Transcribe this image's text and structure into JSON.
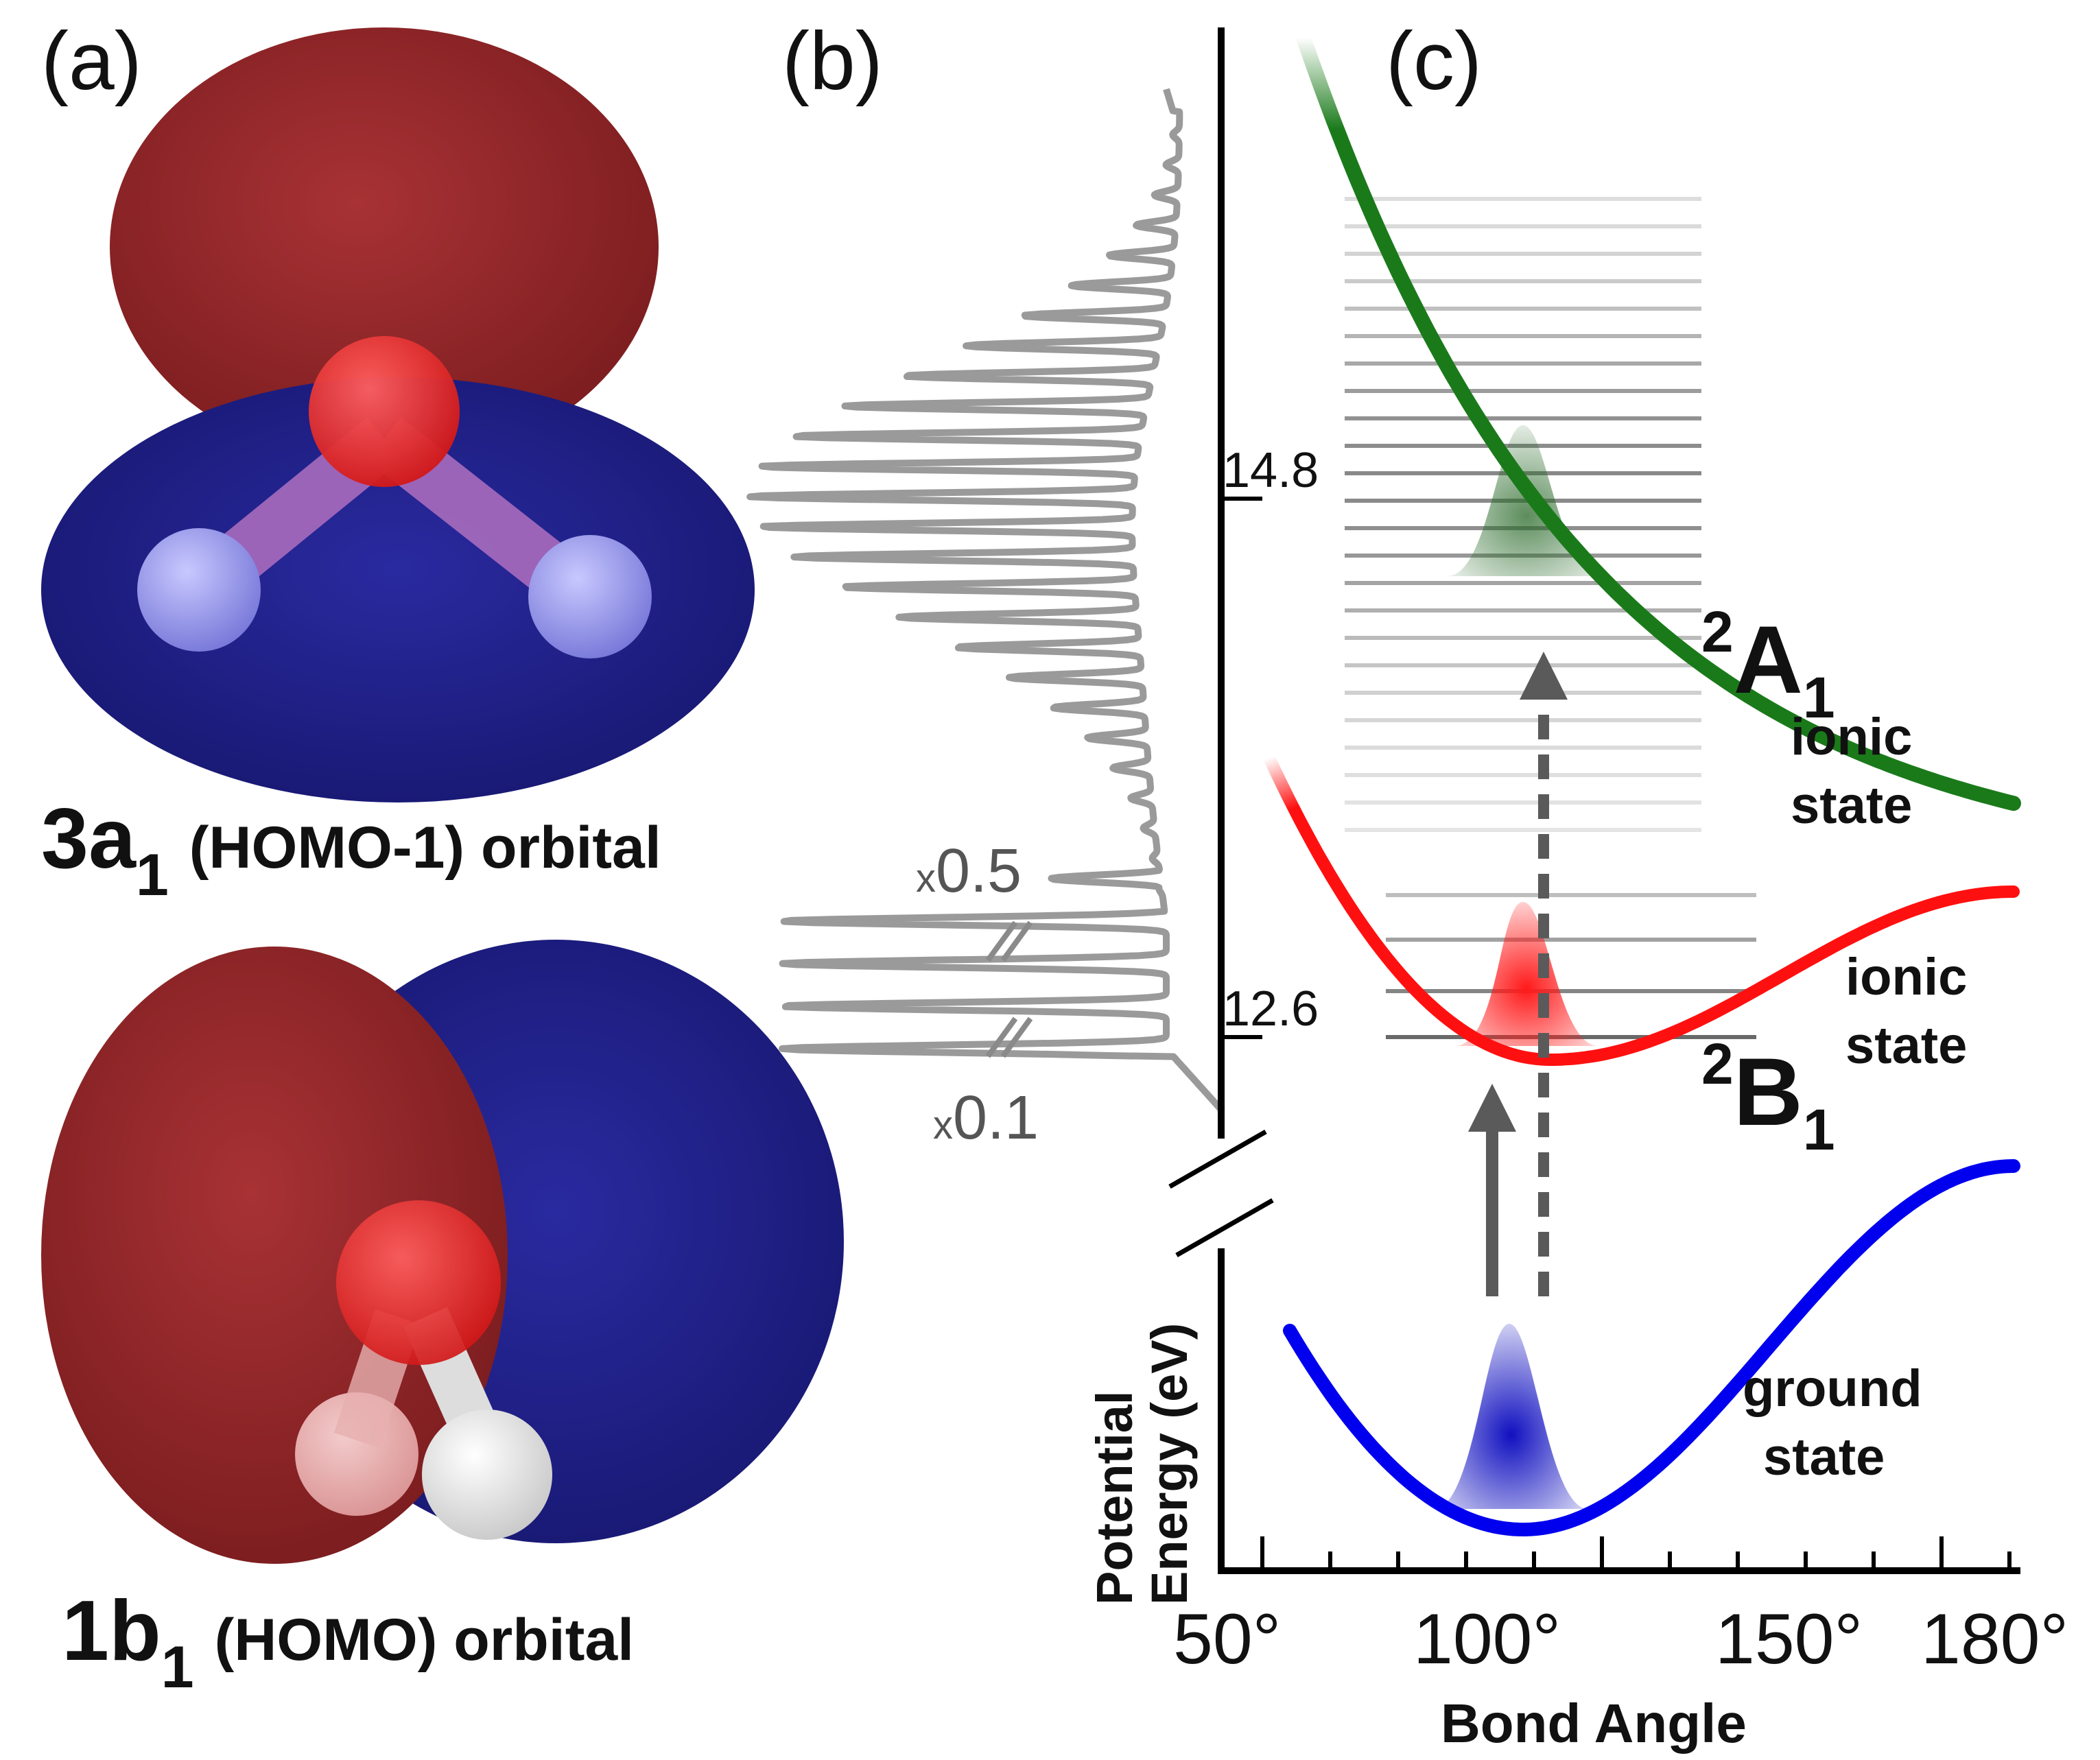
{
  "panels": {
    "a": {
      "label": "(a)",
      "orbital_top": {
        "name": "3a",
        "subscript": "1",
        "rest": "(HOMO-1) orbital"
      },
      "orbital_bottom": {
        "name": "1b",
        "subscript": "1",
        "rest": "(HOMO) orbital"
      }
    },
    "b": {
      "label": "(b)",
      "scale_upper": {
        "prefix": "x",
        "value": "0.5"
      },
      "scale_lower": {
        "prefix": "x",
        "value": "0.1"
      }
    },
    "c": {
      "label": "(c)",
      "energy_labels": [
        "14.8",
        "12.6"
      ],
      "x_ticks": [
        "50°",
        "100°",
        "150°",
        "180°"
      ],
      "x_title": "Bond Angle",
      "y_title_line1": "Potential",
      "y_title_line2": "Energy (eV)",
      "states": {
        "a1": {
          "sup": "2",
          "main": "A",
          "sub": "1",
          "line1": "ionic",
          "line2": "state"
        },
        "b1": {
          "sup": "2",
          "main": "B",
          "sub": "1",
          "line1": "ionic",
          "line2": "state"
        },
        "ground": {
          "line1": "ground",
          "line2": "state"
        }
      }
    }
  },
  "colors": {
    "a1_curve": "#1a7a1a",
    "b1_curve": "#ff1010",
    "ground_curve": "#0000ee",
    "spectrum": "#9a9a9a",
    "orbital_red": "#8e2426",
    "orbital_blue": "#1f1f8c"
  }
}
